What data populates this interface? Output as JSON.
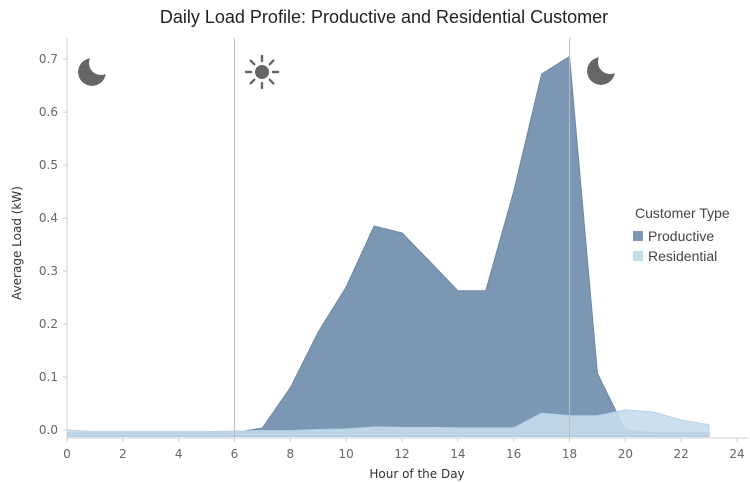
{
  "chart_data": {
    "type": "area",
    "title": "Daily Load Profile: Productive and Residential Customer",
    "xlabel": "Hour of the Day",
    "ylabel": "Average Load (kW)",
    "xlim": [
      0,
      24
    ],
    "ylim": [
      -0.015,
      0.74
    ],
    "x_ticks": [
      0,
      2,
      4,
      6,
      8,
      10,
      12,
      14,
      16,
      18,
      20,
      22,
      24
    ],
    "y_ticks": [
      0.0,
      0.1,
      0.2,
      0.3,
      0.4,
      0.5,
      0.6,
      0.7
    ],
    "y_tick_labels": [
      "0.0",
      "0.1",
      "0.2",
      "0.3",
      "0.4",
      "0.5",
      "0.6",
      "0.7"
    ],
    "x": [
      0,
      1,
      2,
      3,
      4,
      5,
      6,
      7,
      8,
      9,
      10,
      11,
      12,
      13,
      14,
      15,
      16,
      17,
      18,
      19,
      20,
      21,
      22,
      23
    ],
    "series": [
      {
        "name": "Productive",
        "color": "#7b97b4",
        "values": [
          -0.005,
          -0.005,
          -0.005,
          -0.005,
          -0.005,
          -0.005,
          -0.005,
          0.004,
          0.08,
          0.185,
          0.27,
          0.385,
          0.372,
          0.318,
          0.263,
          0.263,
          0.45,
          0.672,
          0.705,
          0.107,
          0.0,
          -0.005,
          -0.005,
          -0.005
        ]
      },
      {
        "name": "Residential",
        "color": "#c5dcec",
        "values": [
          0.0,
          -0.003,
          -0.003,
          -0.003,
          -0.003,
          -0.003,
          -0.002,
          -0.001,
          -0.001,
          0.001,
          0.002,
          0.006,
          0.005,
          0.005,
          0.004,
          0.004,
          0.004,
          0.032,
          0.027,
          0.027,
          0.038,
          0.034,
          0.019,
          0.01
        ]
      }
    ],
    "reference_lines_x": [
      6,
      18
    ],
    "legend": {
      "title": "Customer Type",
      "position": "right",
      "items": [
        "Productive",
        "Residential"
      ]
    },
    "grid": false
  },
  "icons": {
    "night_start": "moon-icon",
    "day_start": "sun-icon",
    "night_end": "moon-icon",
    "icon_color": "#666666"
  }
}
